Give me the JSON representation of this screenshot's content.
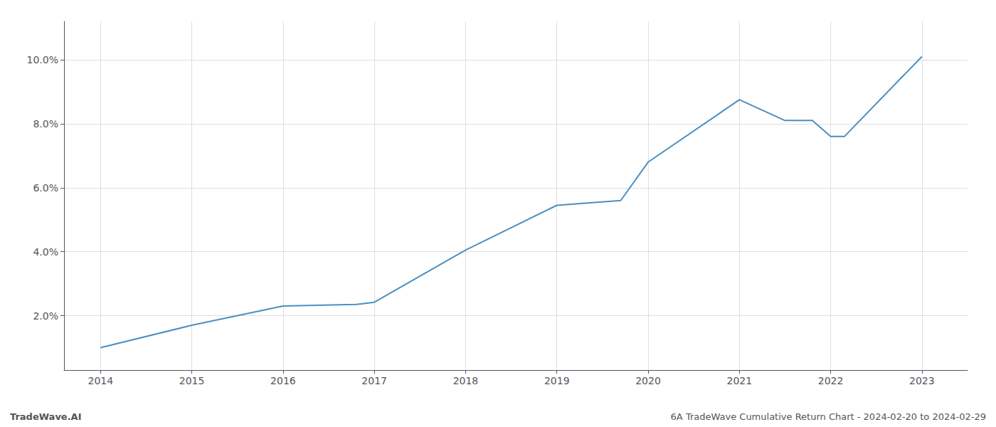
{
  "chart_data": {
    "type": "line",
    "x": [
      2014,
      2015,
      2016,
      2016.8,
      2017,
      2018,
      2019,
      2019.7,
      2020,
      2021,
      2021.5,
      2021.8,
      2022,
      2022.15,
      2023
    ],
    "values": [
      1.0,
      1.7,
      2.3,
      2.35,
      2.42,
      4.05,
      5.45,
      5.6,
      6.8,
      8.75,
      8.1,
      8.1,
      7.6,
      7.6,
      10.1
    ],
    "color": "#4a8fc2",
    "marker": "none",
    "xlim": [
      2013.6,
      2023.5
    ],
    "xticks": [
      2014,
      2015,
      2016,
      2017,
      2018,
      2019,
      2020,
      2021,
      2022,
      2023
    ],
    "ylim": [
      0.3,
      11.2
    ],
    "yticks": [
      {
        "value": 2.0,
        "label": "2.0%"
      },
      {
        "value": 4.0,
        "label": "4.0%"
      },
      {
        "value": 6.0,
        "label": "6.0%"
      },
      {
        "value": 8.0,
        "label": "8.0%"
      },
      {
        "value": 10.0,
        "label": "10.0%"
      }
    ],
    "grid": true,
    "annotations": [
      "TradeWave.AI",
      "6A TradeWave Cumulative Return Chart - 2024-02-20 to 2024-02-29"
    ]
  }
}
